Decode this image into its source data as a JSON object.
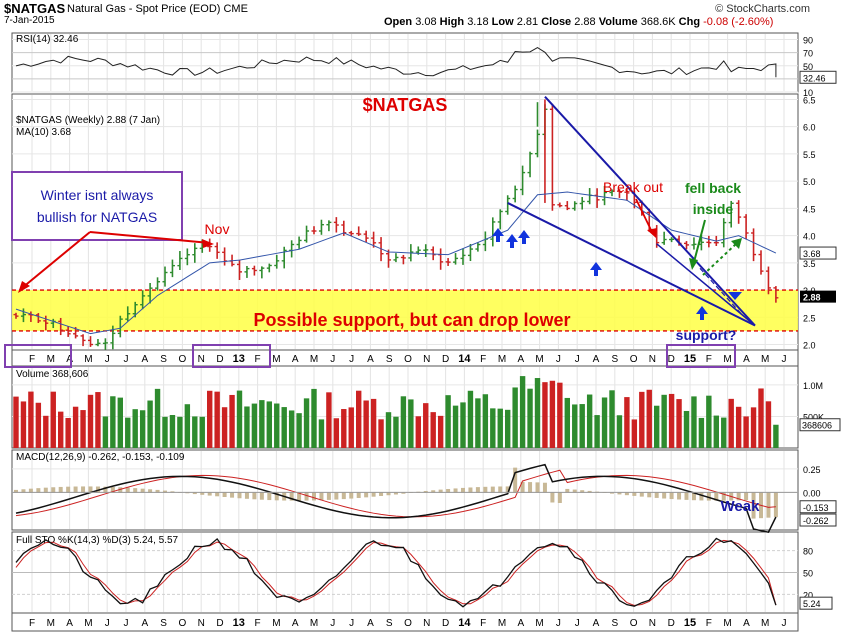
{
  "header": {
    "symbol": "$NATGAS",
    "description": "Natural Gas - Spot Price (EOD) CME",
    "date": "7-Jan-2015",
    "open_label": "Open",
    "open": "3.08",
    "high_label": "High",
    "high": "3.18",
    "low_label": "Low",
    "low": "2.81",
    "close_label": "Close",
    "close": "2.88",
    "volume_label": "Volume",
    "volume": "368.6K",
    "chg_label": "Chg",
    "chg": "-0.08 (-2.60%)",
    "brand": "© StockCharts.com"
  },
  "colors": {
    "up": "#2e8b2e",
    "down": "#cc2222",
    "accent_red": "#dd0000",
    "blue": "#1a1aa8",
    "purple": "#8040b0",
    "green_text": "#1a8a1a",
    "highlight": "#ffff44"
  },
  "chart_data": [
    {
      "panel": "rsi",
      "type": "line",
      "legend": "RSI(14) 32.46",
      "y_ticks": [
        90,
        70,
        50,
        30,
        10
      ],
      "ylim": [
        10,
        100
      ],
      "current_value_label": "32.46",
      "current": 32.46
    },
    {
      "panel": "price",
      "type": "ohlc",
      "title": "$NATGAS",
      "legend": [
        "$NATGAS (Weekly) 2.88 (7 Jan)",
        "MA(10) 3.68"
      ],
      "y_ticks": [
        6.5,
        6.0,
        5.5,
        5.0,
        4.5,
        4.0,
        3.5,
        3.0,
        2.5,
        2.0
      ],
      "ylim": [
        1.9,
        6.6
      ],
      "price_label": "2.88",
      "ma_label": "3.68",
      "x_labels": [
        "F",
        "M",
        "A",
        "M",
        "J",
        "J",
        "A",
        "S",
        "O",
        "N",
        "D",
        "13",
        "F",
        "M",
        "A",
        "M",
        "J",
        "J",
        "A",
        "S",
        "O",
        "N",
        "D",
        "14",
        "F",
        "M",
        "A",
        "M",
        "J",
        "J",
        "A",
        "S",
        "O",
        "N",
        "D",
        "15",
        "F",
        "M",
        "A",
        "M",
        "J"
      ],
      "price_path": [
        [
          0,
          2.55
        ],
        [
          4,
          2.45
        ],
        [
          10,
          2.05
        ],
        [
          12,
          2.0
        ],
        [
          14,
          2.45
        ],
        [
          17,
          2.95
        ],
        [
          19,
          3.15
        ],
        [
          23,
          3.65
        ],
        [
          26,
          3.85
        ],
        [
          28,
          3.5
        ],
        [
          30,
          3.35
        ],
        [
          34,
          3.45
        ],
        [
          38,
          3.95
        ],
        [
          42,
          4.3
        ],
        [
          44,
          4.1
        ],
        [
          48,
          3.9
        ],
        [
          50,
          3.5
        ],
        [
          54,
          3.75
        ],
        [
          58,
          3.5
        ],
        [
          60,
          3.65
        ],
        [
          63,
          3.95
        ],
        [
          66,
          4.7
        ],
        [
          68,
          5.1
        ],
        [
          70,
          5.9
        ],
        [
          71,
          6.35
        ],
        [
          72,
          4.6
        ],
        [
          74,
          4.5
        ],
        [
          76,
          4.65
        ],
        [
          79,
          4.75
        ],
        [
          82,
          4.8
        ],
        [
          84,
          4.4
        ],
        [
          86,
          3.9
        ],
        [
          88,
          3.95
        ],
        [
          90,
          3.85
        ],
        [
          94,
          3.9
        ],
        [
          96,
          4.55
        ],
        [
          97,
          4.35
        ],
        [
          99,
          3.7
        ],
        [
          101,
          3.1
        ],
        [
          102,
          2.88
        ]
      ],
      "ma_path": [
        [
          0,
          2.65
        ],
        [
          10,
          2.2
        ],
        [
          14,
          2.3
        ],
        [
          19,
          2.9
        ],
        [
          26,
          3.5
        ],
        [
          30,
          3.55
        ],
        [
          38,
          3.75
        ],
        [
          44,
          4.05
        ],
        [
          50,
          3.7
        ],
        [
          58,
          3.65
        ],
        [
          66,
          4.1
        ],
        [
          70,
          4.75
        ],
        [
          74,
          4.8
        ],
        [
          82,
          4.65
        ],
        [
          88,
          4.1
        ],
        [
          94,
          3.9
        ],
        [
          97,
          4.0
        ],
        [
          102,
          3.68
        ]
      ],
      "annotations": [
        {
          "text": "Winter isnt always bullish for NATGAS"
        },
        {
          "text": "Nov"
        },
        {
          "text": "Break out"
        },
        {
          "text": "fell back inside"
        },
        {
          "text": "Possible support, but can drop lower"
        },
        {
          "text": "support?"
        }
      ]
    },
    {
      "panel": "volume",
      "type": "bar",
      "legend": "Volume 368,606",
      "y_ticks": [
        "1.0M",
        "500K"
      ],
      "current_value_label": "368606",
      "current": 368606
    },
    {
      "panel": "macd",
      "type": "line",
      "legend": "MACD(12,26,9) -0.262, -0.153, -0.109",
      "y_ticks": [
        "0.25",
        "0.00"
      ],
      "labels": [
        "-0.153",
        "-0.262"
      ],
      "macd": -0.262,
      "signal": -0.153,
      "histogram": -0.109,
      "annotation": "Weak"
    },
    {
      "panel": "stochastic",
      "type": "line",
      "legend": "Full STO %K(14,3) %D(3) 5.24, 5.57",
      "y_ticks": [
        80,
        50,
        20
      ],
      "current_value_label": "5.24",
      "k": 5.24,
      "d": 5.57
    }
  ]
}
